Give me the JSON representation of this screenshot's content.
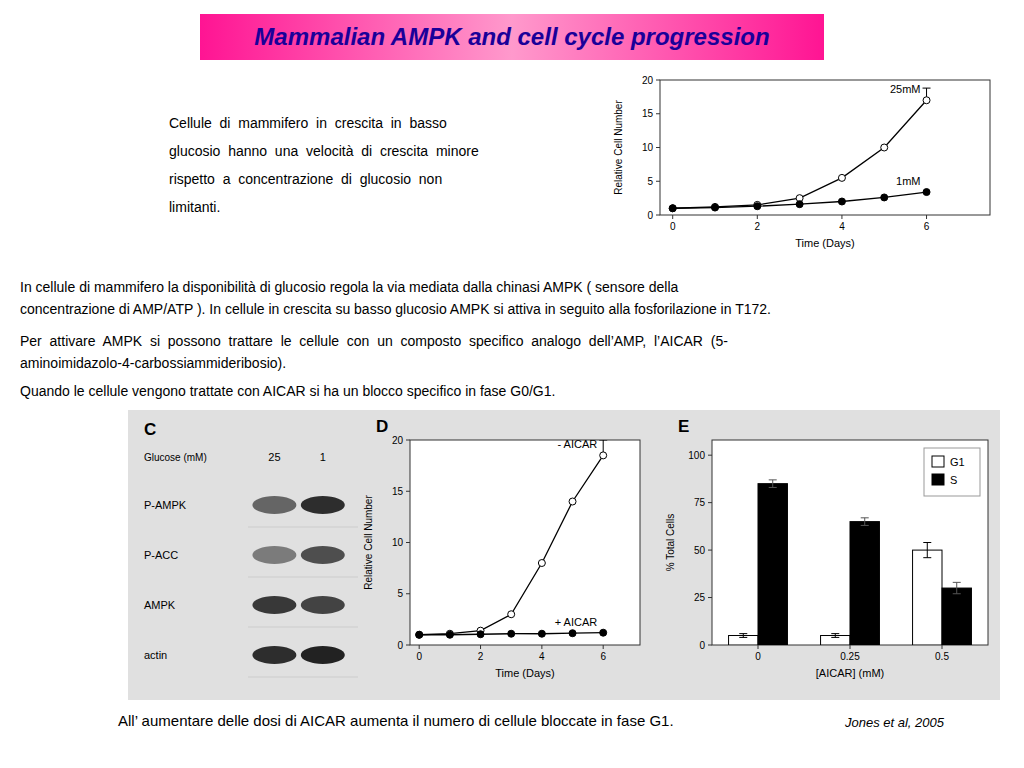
{
  "title": "Mammalian AMPK and cell cycle progression",
  "annotations": [
    "Cellule  di  mammifero  in  crescita  in  basso",
    "glucosio  hanno  una  velocità  di  crescita  minore",
    "rispetto  a  concentrazione  di  glucosio  non",
    "limitanti.",
    "In cellule di mammifero la disponibilità di glucosio regola la via mediata dalla chinasi AMPK ( sensore della\nconcentrazione di AMP/ATP ). In cellule in crescita su basso glucosio AMPK si attiva in seguito alla fosforilazione in T172.",
    "Per  attivare  AMPK  si  possono  trattare  le  cellule  con  un  composto  specifico  analogo  dell’AMP,  l’AICAR  (5-",
    "aminoimidazolo-4-carbossiammideribosio).",
    "Quando le cellule vengono trattate con AICAR si ha un blocco specifico in fase G0/G1.",
    "All’ aumentare delle dosi di AICAR aumenta il numero di cellule bloccate in fase G1.",
    "Jones et al, 2005"
  ],
  "chart_data": [
    {
      "type": "line",
      "x": [
        0,
        1,
        2,
        3,
        4,
        5,
        6
      ],
      "xlim": [
        -0.3,
        7.5
      ],
      "xticks": [
        0,
        2,
        4,
        6
      ],
      "ylim": [
        0,
        20
      ],
      "yticks": [
        0,
        5,
        10,
        15,
        20
      ],
      "xlabel": "Time (Days)",
      "ylabel": "Relative Cell Number",
      "series": [
        {
          "name": "25mM",
          "color": "#000000",
          "marker": "circle-open",
          "values": [
            1.0,
            1.2,
            1.5,
            2.5,
            5.5,
            10.0,
            17.0
          ],
          "error_up": [
            null,
            null,
            null,
            null,
            null,
            null,
            1.8
          ]
        },
        {
          "name": "1mM",
          "color": "#000000",
          "marker": "circle",
          "values": [
            1.0,
            1.1,
            1.3,
            1.6,
            2.0,
            2.6,
            3.4
          ]
        }
      ]
    },
    {
      "type": "blot",
      "annotations": [
        "C"
      ],
      "xlabel": "Glucose (mM)",
      "categories": [
        "P-AMPK",
        "P-ACC",
        "AMPK",
        "actin"
      ],
      "series": [
        {
          "name": "25",
          "values": [
            0.55,
            0.45,
            0.75,
            0.8
          ]
        },
        {
          "name": "1",
          "values": [
            0.8,
            0.65,
            0.7,
            0.85
          ]
        }
      ]
    },
    {
      "type": "line",
      "annotations": [
        "D"
      ],
      "x": [
        0,
        1,
        2,
        3,
        4,
        5,
        6
      ],
      "xlim": [
        -0.3,
        7.2
      ],
      "xticks": [
        0,
        2,
        4,
        6
      ],
      "ylim": [
        0,
        20
      ],
      "yticks": [
        0,
        5,
        10,
        15,
        20
      ],
      "xlabel": "Time (Days)",
      "ylabel": "Relative Cell Number",
      "series": [
        {
          "name": "- AICAR",
          "color": "#000000",
          "marker": "circle-open",
          "values": [
            1.0,
            1.1,
            1.4,
            3.0,
            8.0,
            14.0,
            18.5
          ],
          "error_up": [
            null,
            null,
            null,
            null,
            null,
            null,
            1.5
          ]
        },
        {
          "name": "+ AICAR",
          "color": "#000000",
          "marker": "circle",
          "values": [
            1.0,
            1.0,
            1.05,
            1.1,
            1.1,
            1.15,
            1.2
          ]
        }
      ]
    },
    {
      "type": "bar",
      "annotations": [
        "E"
      ],
      "categories": [
        "0",
        "0.25",
        "0.5"
      ],
      "xlabel": "[AICAR] (mM)",
      "ylabel": "% Total Cells",
      "ylim": [
        0,
        108
      ],
      "yticks": [
        0,
        25,
        50,
        75,
        100
      ],
      "legend": "upper-right",
      "series": [
        {
          "name": "G1",
          "color": "#ffffff",
          "values": [
            5,
            5,
            50
          ],
          "errors": [
            1,
            1,
            4
          ]
        },
        {
          "name": "S",
          "color": "#000000",
          "values": [
            85,
            65,
            30
          ],
          "errors": [
            2,
            2,
            3
          ]
        }
      ]
    }
  ]
}
